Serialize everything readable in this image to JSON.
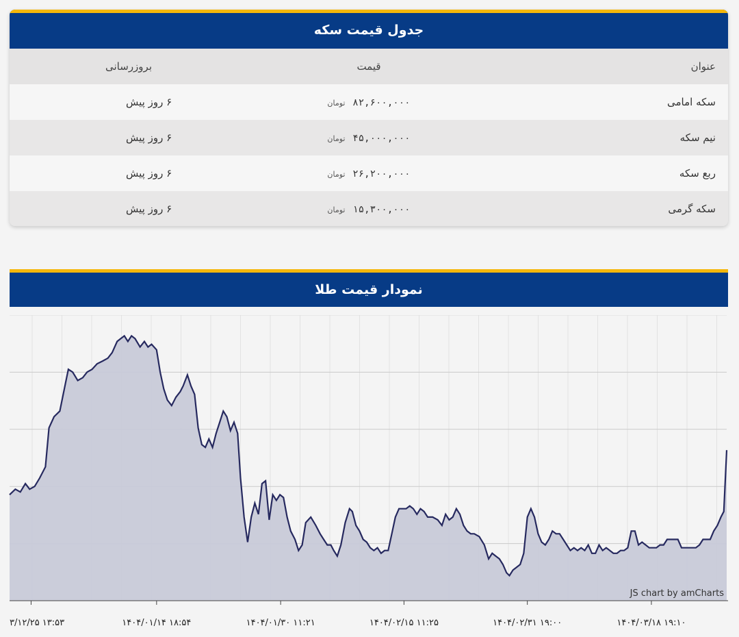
{
  "price_table": {
    "title": "جدول قیمت سکه",
    "headers": {
      "title": "عنوان",
      "price": "قیمت",
      "updated": "بروزرسانی"
    },
    "rows": [
      {
        "title": "سکه امامی",
        "price": "۸۲,۶۰۰,۰۰۰",
        "currency": "تومان",
        "updated": "۶ روز پیش"
      },
      {
        "title": "نیم سکه",
        "price": "۴۵,۰۰۰,۰۰۰",
        "currency": "تومان",
        "updated": "۶ روز پیش"
      },
      {
        "title": "ربع سکه",
        "price": "۲۶,۲۰۰,۰۰۰",
        "currency": "تومان",
        "updated": "۶ روز پیش"
      },
      {
        "title": "سکه گرمی",
        "price": "۱۵,۳۰۰,۰۰۰",
        "currency": "تومان",
        "updated": "۶ روز پیش"
      }
    ]
  },
  "gold_chart": {
    "title": "نمودار قیمت طلا",
    "credit": "JS chart by amCharts"
  },
  "chart_data": {
    "type": "area",
    "title": "نمودار قیمت طلا",
    "x_tick_labels": [
      "۳/۱۲/۲۵ ۱۳:۵۳",
      "۱۴۰۴/۰۱/۱۴ ۱۸:۵۴",
      "۱۴۰۴/۰۱/۳۰ ۱۱:۲۱",
      "۱۴۰۴/۰۲/۱۵ ۱۱:۲۵",
      "۱۴۰۴/۰۲/۳۱ ۱۹:۰۰",
      "۱۴۰۴/۰۳/۱۸ ۱۹:۱۰"
    ],
    "x_tick_positions": [
      0.03,
      0.205,
      0.378,
      0.55,
      0.722,
      0.895
    ],
    "y_range": [
      0,
      100
    ],
    "grid": true,
    "line_color": "#26295f",
    "fill_color": "#c8cad8",
    "values": [
      [
        0.0,
        38
      ],
      [
        0.008,
        40
      ],
      [
        0.015,
        39
      ],
      [
        0.022,
        42
      ],
      [
        0.028,
        40
      ],
      [
        0.035,
        41
      ],
      [
        0.042,
        44
      ],
      [
        0.05,
        48
      ],
      [
        0.055,
        62
      ],
      [
        0.062,
        66
      ],
      [
        0.07,
        68
      ],
      [
        0.078,
        78
      ],
      [
        0.082,
        83
      ],
      [
        0.088,
        82
      ],
      [
        0.095,
        79
      ],
      [
        0.102,
        80
      ],
      [
        0.108,
        82
      ],
      [
        0.115,
        83
      ],
      [
        0.122,
        85
      ],
      [
        0.13,
        86
      ],
      [
        0.137,
        87
      ],
      [
        0.143,
        89
      ],
      [
        0.15,
        93
      ],
      [
        0.155,
        94
      ],
      [
        0.16,
        95
      ],
      [
        0.165,
        93
      ],
      [
        0.17,
        95
      ],
      [
        0.175,
        94
      ],
      [
        0.182,
        91
      ],
      [
        0.188,
        93
      ],
      [
        0.193,
        91
      ],
      [
        0.198,
        92
      ],
      [
        0.205,
        90
      ],
      [
        0.21,
        82
      ],
      [
        0.215,
        76
      ],
      [
        0.22,
        72
      ],
      [
        0.226,
        70
      ],
      [
        0.232,
        73
      ],
      [
        0.238,
        75
      ],
      [
        0.242,
        77
      ],
      [
        0.248,
        81
      ],
      [
        0.253,
        77
      ],
      [
        0.258,
        74
      ],
      [
        0.263,
        62
      ],
      [
        0.268,
        56
      ],
      [
        0.273,
        55
      ],
      [
        0.278,
        58
      ],
      [
        0.283,
        55
      ],
      [
        0.288,
        60
      ],
      [
        0.293,
        64
      ],
      [
        0.298,
        68
      ],
      [
        0.303,
        66
      ],
      [
        0.308,
        61
      ],
      [
        0.313,
        64
      ],
      [
        0.318,
        60
      ],
      [
        0.322,
        44
      ],
      [
        0.327,
        30
      ],
      [
        0.332,
        21
      ],
      [
        0.337,
        30
      ],
      [
        0.342,
        35
      ],
      [
        0.347,
        31
      ],
      [
        0.352,
        42
      ],
      [
        0.357,
        43
      ],
      [
        0.362,
        29
      ],
      [
        0.367,
        38
      ],
      [
        0.372,
        36
      ],
      [
        0.377,
        38
      ],
      [
        0.382,
        37
      ],
      [
        0.387,
        30
      ],
      [
        0.392,
        25
      ],
      [
        0.398,
        22
      ],
      [
        0.403,
        18
      ],
      [
        0.408,
        20
      ],
      [
        0.413,
        28
      ],
      [
        0.42,
        30
      ],
      [
        0.427,
        27
      ],
      [
        0.433,
        24
      ],
      [
        0.438,
        22
      ],
      [
        0.443,
        20
      ],
      [
        0.448,
        20
      ],
      [
        0.452,
        18
      ],
      [
        0.457,
        16
      ],
      [
        0.462,
        20
      ],
      [
        0.468,
        28
      ],
      [
        0.474,
        33
      ],
      [
        0.478,
        32
      ],
      [
        0.483,
        27
      ],
      [
        0.488,
        25
      ],
      [
        0.493,
        22
      ],
      [
        0.498,
        21
      ],
      [
        0.503,
        19
      ],
      [
        0.508,
        18
      ],
      [
        0.513,
        19
      ],
      [
        0.518,
        17
      ],
      [
        0.523,
        18
      ],
      [
        0.528,
        18
      ],
      [
        0.533,
        24
      ],
      [
        0.538,
        30
      ],
      [
        0.543,
        33
      ],
      [
        0.548,
        33
      ],
      [
        0.553,
        33
      ],
      [
        0.558,
        34
      ],
      [
        0.563,
        33
      ],
      [
        0.568,
        31
      ],
      [
        0.573,
        33
      ],
      [
        0.578,
        32
      ],
      [
        0.583,
        30
      ],
      [
        0.59,
        30
      ],
      [
        0.597,
        29
      ],
      [
        0.603,
        27
      ],
      [
        0.608,
        31
      ],
      [
        0.613,
        29
      ],
      [
        0.618,
        30
      ],
      [
        0.623,
        33
      ],
      [
        0.628,
        31
      ],
      [
        0.633,
        27
      ],
      [
        0.638,
        25
      ],
      [
        0.643,
        24
      ],
      [
        0.648,
        24
      ],
      [
        0.655,
        23
      ],
      [
        0.662,
        20
      ],
      [
        0.668,
        15
      ],
      [
        0.673,
        17
      ],
      [
        0.678,
        16
      ],
      [
        0.683,
        15
      ],
      [
        0.688,
        13
      ],
      [
        0.693,
        10
      ],
      [
        0.697,
        9
      ],
      [
        0.702,
        11
      ],
      [
        0.707,
        12
      ],
      [
        0.712,
        13
      ],
      [
        0.717,
        17
      ],
      [
        0.722,
        30
      ],
      [
        0.727,
        33
      ],
      [
        0.732,
        30
      ],
      [
        0.737,
        24
      ],
      [
        0.742,
        21
      ],
      [
        0.747,
        20
      ],
      [
        0.752,
        22
      ],
      [
        0.757,
        25
      ],
      [
        0.762,
        24
      ],
      [
        0.767,
        24
      ],
      [
        0.772,
        22
      ],
      [
        0.777,
        20
      ],
      [
        0.782,
        18
      ],
      [
        0.787,
        19
      ],
      [
        0.792,
        18
      ],
      [
        0.797,
        19
      ],
      [
        0.802,
        18
      ],
      [
        0.807,
        20
      ],
      [
        0.812,
        17
      ],
      [
        0.817,
        17
      ],
      [
        0.822,
        20
      ],
      [
        0.827,
        18
      ],
      [
        0.832,
        19
      ],
      [
        0.837,
        18
      ],
      [
        0.842,
        17
      ],
      [
        0.847,
        17
      ],
      [
        0.852,
        18
      ],
      [
        0.857,
        18
      ],
      [
        0.862,
        19
      ],
      [
        0.867,
        25
      ],
      [
        0.872,
        25
      ],
      [
        0.877,
        20
      ],
      [
        0.882,
        21
      ],
      [
        0.887,
        20
      ],
      [
        0.892,
        19
      ],
      [
        0.897,
        19
      ],
      [
        0.902,
        19
      ],
      [
        0.907,
        20
      ],
      [
        0.912,
        20
      ],
      [
        0.917,
        22
      ],
      [
        0.922,
        22
      ],
      [
        0.927,
        22
      ],
      [
        0.932,
        22
      ],
      [
        0.937,
        19
      ],
      [
        0.942,
        19
      ],
      [
        0.947,
        19
      ],
      [
        0.952,
        19
      ],
      [
        0.957,
        19
      ],
      [
        0.962,
        20
      ],
      [
        0.967,
        22
      ],
      [
        0.972,
        22
      ],
      [
        0.977,
        22
      ],
      [
        0.982,
        25
      ],
      [
        0.987,
        27
      ],
      [
        0.992,
        30
      ],
      [
        0.996,
        32
      ],
      [
        1.0,
        54
      ]
    ]
  }
}
